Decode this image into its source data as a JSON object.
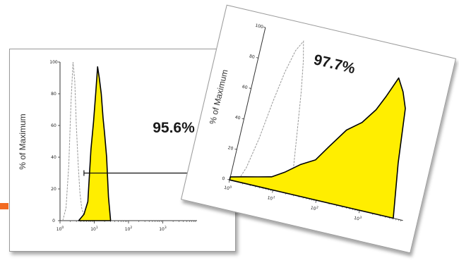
{
  "colors": {
    "accent": "#f26a21",
    "fill": "#ffee00",
    "outline": "#000000",
    "control": "#999999"
  },
  "chart_data": [
    {
      "type": "area",
      "ylabel": "% of Maximum",
      "ylim": [
        0,
        100
      ],
      "xscale": "log",
      "xlim": [
        1,
        10000
      ],
      "y_ticks": [
        "0",
        "20",
        "40",
        "60",
        "80",
        "100"
      ],
      "x_ticks": [
        "10^0",
        "10^1",
        "10^2",
        "10^3"
      ],
      "annotation": "95.6%",
      "gate_range": [
        5,
        10000
      ],
      "series": [
        {
          "role": "control",
          "x": [
            1.2,
            1.5,
            1.8,
            2.1,
            2.4,
            2.7,
            3.0,
            3.4,
            3.8,
            4.3,
            5.0,
            6.0
          ],
          "y": [
            0,
            8,
            35,
            75,
            100,
            88,
            60,
            35,
            18,
            8,
            3,
            0
          ]
        },
        {
          "role": "stained",
          "x": [
            3.5,
            5.0,
            6.5,
            8.0,
            9.5,
            11.0,
            12.5,
            14.0,
            16.0,
            18.0,
            20.0,
            23.0,
            26.0,
            30.0
          ],
          "y": [
            0,
            4,
            12,
            45,
            62,
            80,
            97,
            90,
            80,
            65,
            55,
            40,
            15,
            0
          ]
        }
      ]
    },
    {
      "type": "area",
      "ylabel": "% of Maximum",
      "ylim": [
        0,
        100
      ],
      "xscale": "log",
      "xlim": [
        1,
        10000
      ],
      "y_ticks": [
        "0",
        "20",
        "40",
        "60",
        "80",
        "100"
      ],
      "x_ticks": [
        "10^0",
        "10^1",
        "10^2",
        "10^3"
      ],
      "annotation": "97.7%",
      "series": [
        {
          "role": "control",
          "x": [
            1.5,
            2.0,
            2.7,
            3.5,
            4.5,
            6.0,
            8.0,
            10.0,
            13.0,
            17.0,
            22.0,
            30.0
          ],
          "y": [
            0,
            10,
            30,
            55,
            75,
            90,
            97,
            85,
            65,
            40,
            15,
            0
          ]
        },
        {
          "role": "stained",
          "x": [
            1.0,
            2.0,
            4.0,
            8.0,
            15.0,
            30.0,
            60.0,
            100.0,
            200.0,
            400.0,
            700.0,
            1000.0,
            1500.0,
            2200.0,
            3000.0,
            4000.0,
            6000.0
          ],
          "y": [
            2,
            4,
            6,
            8,
            13,
            20,
            25,
            35,
            48,
            55,
            65,
            75,
            88,
            80,
            70,
            35,
            0
          ]
        }
      ]
    }
  ]
}
